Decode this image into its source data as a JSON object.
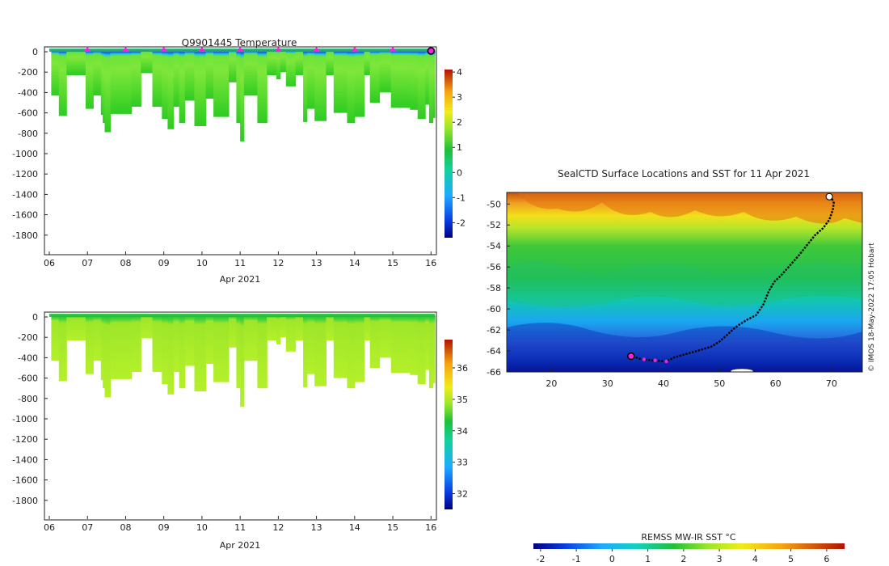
{
  "colors": {
    "profile_green": "#3fcf1c",
    "profile_yellowgreen": "#aef22a",
    "surface_cyan": "#1fc7e6",
    "surface_blue": "#2a5bd6",
    "track": "#000000",
    "marker_magenta": "#ff1fe0",
    "land_fill": "#ffffff"
  },
  "chart_data": [
    {
      "id": "temperature-section",
      "type": "heatmap",
      "title": "Q9901445  Temperature",
      "xlabel": "Apr 2021",
      "x_tick_labels": [
        "06",
        "07",
        "08",
        "09",
        "10",
        "11",
        "12",
        "13",
        "14",
        "15",
        "16"
      ],
      "x_ticks_day": [
        6,
        7,
        8,
        9,
        10,
        11,
        12,
        13,
        14,
        15,
        16
      ],
      "xlim_day": [
        6,
        16.1
      ],
      "y_tick_labels": [
        "0",
        "-200",
        "-400",
        "-600",
        "-800",
        "-1000",
        "-1200",
        "-1400",
        "-1600",
        "-1800"
      ],
      "ylim_m": [
        -2000,
        0
      ],
      "colorbar": {
        "ticks": [
          "4",
          "3",
          "2",
          "1",
          "0",
          "-1",
          "-2"
        ],
        "range": [
          -2.6,
          4.1
        ]
      },
      "surface_markers_day": [
        7,
        8,
        9,
        10,
        11,
        12,
        13,
        14,
        15
      ],
      "end_marker_day": 16,
      "profiles": [
        {
          "day": 6.05,
          "depth": -430
        },
        {
          "day": 6.25,
          "depth": -630
        },
        {
          "day": 6.45,
          "depth": -230
        },
        {
          "day": 6.6,
          "depth": -230
        },
        {
          "day": 6.75,
          "depth": -230
        },
        {
          "day": 6.95,
          "depth": -560
        },
        {
          "day": 7.15,
          "depth": -430
        },
        {
          "day": 7.35,
          "depth": -620
        },
        {
          "day": 7.4,
          "depth": -700
        },
        {
          "day": 7.45,
          "depth": -790
        },
        {
          "day": 7.6,
          "depth": -610
        },
        {
          "day": 7.9,
          "depth": -610
        },
        {
          "day": 8.15,
          "depth": -540
        },
        {
          "day": 8.4,
          "depth": -210
        },
        {
          "day": 8.7,
          "depth": -540
        },
        {
          "day": 8.95,
          "depth": -660
        },
        {
          "day": 9.1,
          "depth": -760
        },
        {
          "day": 9.25,
          "depth": -540
        },
        {
          "day": 9.4,
          "depth": -700
        },
        {
          "day": 9.55,
          "depth": -480
        },
        {
          "day": 9.8,
          "depth": -730
        },
        {
          "day": 10.1,
          "depth": -460
        },
        {
          "day": 10.3,
          "depth": -640
        },
        {
          "day": 10.45,
          "depth": -640
        },
        {
          "day": 10.7,
          "depth": -300
        },
        {
          "day": 10.9,
          "depth": -700
        },
        {
          "day": 11.0,
          "depth": -880
        },
        {
          "day": 11.1,
          "depth": -430
        },
        {
          "day": 11.45,
          "depth": -700
        },
        {
          "day": 11.7,
          "depth": -230
        },
        {
          "day": 11.95,
          "depth": -270
        },
        {
          "day": 12.05,
          "depth": -200
        },
        {
          "day": 12.2,
          "depth": -340
        },
        {
          "day": 12.45,
          "depth": -230
        },
        {
          "day": 12.65,
          "depth": -690
        },
        {
          "day": 12.75,
          "depth": -560
        },
        {
          "day": 12.95,
          "depth": -680
        },
        {
          "day": 13.15,
          "depth": -680
        },
        {
          "day": 13.25,
          "depth": -230
        },
        {
          "day": 13.45,
          "depth": -600
        },
        {
          "day": 13.6,
          "depth": -600
        },
        {
          "day": 13.8,
          "depth": -700
        },
        {
          "day": 14.0,
          "depth": -640
        },
        {
          "day": 14.25,
          "depth": -230
        },
        {
          "day": 14.4,
          "depth": -500
        },
        {
          "day": 14.65,
          "depth": -400
        },
        {
          "day": 14.95,
          "depth": -550
        },
        {
          "day": 15.25,
          "depth": -550
        },
        {
          "day": 15.45,
          "depth": -570
        },
        {
          "day": 15.65,
          "depth": -660
        },
        {
          "day": 15.85,
          "depth": -520
        },
        {
          "day": 15.95,
          "depth": -700
        },
        {
          "day": 16.05,
          "depth": -650
        }
      ]
    },
    {
      "id": "salinity-section",
      "type": "heatmap",
      "title": "",
      "xlabel": "Apr 2021",
      "x_tick_labels": [
        "06",
        "07",
        "08",
        "09",
        "10",
        "11",
        "12",
        "13",
        "14",
        "15",
        "16"
      ],
      "x_ticks_day": [
        6,
        7,
        8,
        9,
        10,
        11,
        12,
        13,
        14,
        15,
        16
      ],
      "xlim_day": [
        6,
        16.1
      ],
      "y_tick_labels": [
        "0",
        "-200",
        "-400",
        "-600",
        "-800",
        "-1000",
        "-1200",
        "-1400",
        "-1600",
        "-1800"
      ],
      "ylim_m": [
        -2000,
        0
      ],
      "colorbar": {
        "ticks": [
          "36",
          "35",
          "34",
          "33",
          "32"
        ],
        "range": [
          31.5,
          36.9
        ]
      }
    },
    {
      "id": "sst-map",
      "type": "heatmap",
      "title": "SealCTD Surface Locations and SST for 11 Apr 2021",
      "x_tick_labels": [
        "20",
        "30",
        "40",
        "50",
        "60",
        "70"
      ],
      "x_ticks_lon": [
        20,
        30,
        40,
        50,
        60,
        70
      ],
      "xlim_lon": [
        12,
        75.5
      ],
      "y_tick_labels": [
        "-50",
        "-52",
        "-54",
        "-56",
        "-58",
        "-60",
        "-62",
        "-64",
        "-66"
      ],
      "y_ticks_lat": [
        -50,
        -52,
        -54,
        -56,
        -58,
        -60,
        -62,
        -64,
        -66
      ],
      "ylim_lat": [
        -66,
        -48.9
      ],
      "colorbar": {
        "label": "REMSS MW-IR SST °C",
        "ticks": [
          "-2",
          "-1",
          "0",
          "1",
          "2",
          "3",
          "4",
          "5",
          "6"
        ],
        "range": [
          -2.2,
          6.5
        ]
      },
      "track": [
        [
          34.5,
          -64.5
        ],
        [
          36.0,
          -64.8
        ],
        [
          38.0,
          -64.9
        ],
        [
          40.5,
          -65.0
        ],
        [
          42.0,
          -64.6
        ],
        [
          44.0,
          -64.3
        ],
        [
          46.0,
          -64.0
        ],
        [
          48.5,
          -63.6
        ],
        [
          50.0,
          -63.1
        ],
        [
          51.5,
          -62.4
        ],
        [
          52.5,
          -61.9
        ],
        [
          53.5,
          -61.5
        ],
        [
          55.0,
          -61.0
        ],
        [
          56.5,
          -60.6
        ],
        [
          57.8,
          -59.6
        ],
        [
          58.8,
          -58.3
        ],
        [
          59.8,
          -57.4
        ],
        [
          61.0,
          -56.8
        ],
        [
          62.5,
          -55.9
        ],
        [
          64.0,
          -55.0
        ],
        [
          65.5,
          -54.0
        ],
        [
          67.0,
          -53.0
        ],
        [
          68.5,
          -52.3
        ],
        [
          69.6,
          -51.5
        ],
        [
          70.2,
          -50.6
        ],
        [
          70.4,
          -49.9
        ],
        [
          70.0,
          -49.4
        ],
        [
          69.6,
          -49.3
        ]
      ],
      "start_marker": [
        34.2,
        -64.5
      ],
      "magenta_points": [
        [
          36.5,
          -64.8
        ],
        [
          38.5,
          -64.9
        ],
        [
          40.5,
          -65.0
        ]
      ]
    }
  ],
  "stamp": "© IMOS 18-May-2022 17:05 Hobart"
}
